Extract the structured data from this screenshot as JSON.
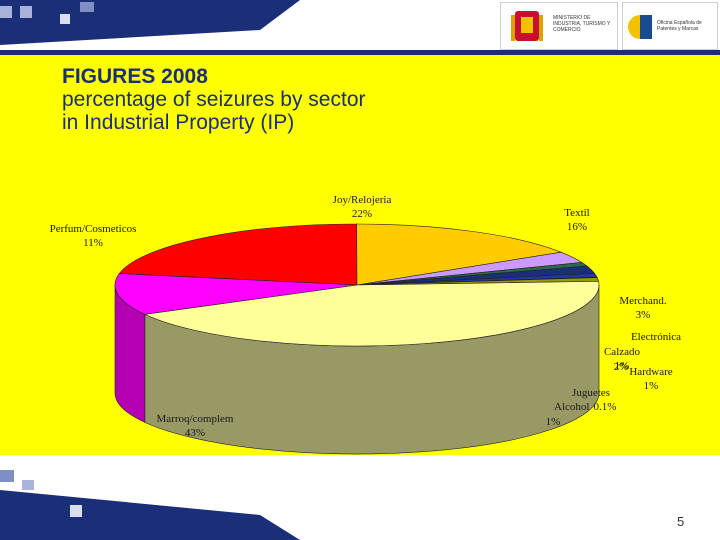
{
  "slide": {
    "title_line1": "FIGURES 2008",
    "title_line2": "percentage of seizures by sector",
    "title_line3": "in Industrial Property (IP)",
    "page_number": "5"
  },
  "logos": {
    "ministry": "MINISTERIO DE INDUSTRIA, TURISMO Y COMERCIO",
    "oepm": "Oficina Española de Patentes y Marcas"
  },
  "colors": {
    "background_yellow": "#ffff00",
    "band_blue": "#1b2e78",
    "title_blue": "#1b2e78"
  },
  "chart_data": {
    "type": "pie",
    "title": "",
    "series": [
      {
        "slices": [
          {
            "name": "Joy/Relojería",
            "value": 22,
            "label": "22%",
            "color": "#ff0000",
            "side": "#b30000"
          },
          {
            "name": "Textil",
            "value": 16,
            "label": "16%",
            "color": "#ffcc00",
            "side": "#b38f00"
          },
          {
            "name": "Merchand.",
            "value": 3,
            "label": "3%",
            "color": "#cc99ff",
            "side": "#8c6bb3"
          },
          {
            "name": "Electrónica",
            "value": 1,
            "label": "1%",
            "color": "#2a6a4a",
            "side": "#1c4a33"
          },
          {
            "name": "Calzado",
            "value": 2,
            "label": "2%",
            "color": "#1b2e78",
            "side": "#101c4d"
          },
          {
            "name": "Hardware",
            "value": 1,
            "label": "1%",
            "color": "#1f3aa8",
            "side": "#142673"
          },
          {
            "name": "Juguetes",
            "value": 0.1,
            "label": "0.1%",
            "color": "#000000",
            "side": "#000000"
          },
          {
            "name": "Alcohol",
            "value": 1,
            "label": "1%",
            "color": "#999900",
            "side": "#666600"
          },
          {
            "name": "Marroq/complem",
            "value": 43,
            "label": "43%",
            "color": "#ffff99",
            "side": "#999966"
          },
          {
            "name": "Perfum/Cosmeticos",
            "value": 11,
            "label": "11%",
            "color": "#ff00ff",
            "side": "#b300b3"
          }
        ]
      }
    ],
    "labels": [
      {
        "text": "Joy/Relojeria",
        "pct": "22%"
      },
      {
        "text": "Textil",
        "pct": "16%"
      },
      {
        "text": "Merchand.",
        "pct": "3%"
      },
      {
        "text": "Electrónica",
        "pct": ""
      },
      {
        "text": "Calzado",
        "pct": "1%"
      },
      {
        "text": "2%",
        "pct": ""
      },
      {
        "text": "Hardware",
        "pct": "1%"
      },
      {
        "text": "Juguetes",
        "pct": ""
      },
      {
        "text": "Alcohol",
        "pct": "0.1%"
      },
      {
        "text": "1%",
        "pct": ""
      },
      {
        "text": "Marroq/complem",
        "pct": "43%"
      },
      {
        "text": "Perfum/Cosmeticos",
        "pct": "11%"
      }
    ]
  }
}
